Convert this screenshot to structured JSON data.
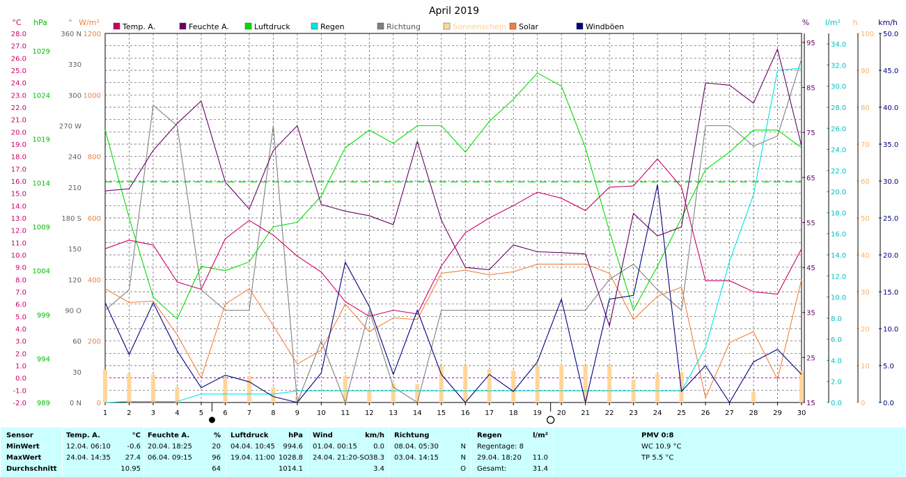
{
  "title": "April 2019",
  "axis_units": {
    "temp": "°C",
    "pressure": "hPa",
    "direction": "°",
    "solar": "W/m²",
    "humidity": "%",
    "rain": "l/m²",
    "sunshine": "h",
    "wind": "km/h"
  },
  "colors": {
    "temp": "#cc0066",
    "humidity": "#660066",
    "pressure": "#00dd00",
    "rain": "#00e5e5",
    "direction": "#808080",
    "sunshine": "#ffd699",
    "solar": "#f08040",
    "gust": "#000080",
    "grid": "#555555",
    "sunshine_label": "#ffcc99"
  },
  "legend": [
    {
      "key": "temp",
      "label": "Temp. A."
    },
    {
      "key": "humidity",
      "label": "Feuchte A."
    },
    {
      "key": "pressure",
      "label": "Luftdruck"
    },
    {
      "key": "rain",
      "label": "Regen"
    },
    {
      "key": "direction",
      "label": "Richtung"
    },
    {
      "key": "sunshine",
      "label": "Sonnenschein"
    },
    {
      "key": "solar",
      "label": "Solar"
    },
    {
      "key": "gust",
      "label": "Windböen"
    }
  ],
  "chart_data": {
    "type": "line",
    "title": "April 2019",
    "x": [
      1,
      2,
      3,
      4,
      5,
      6,
      7,
      8,
      9,
      10,
      11,
      12,
      13,
      14,
      15,
      16,
      17,
      18,
      19,
      20,
      21,
      22,
      23,
      24,
      25,
      26,
      27,
      28,
      29,
      30
    ],
    "temp_ticks": [
      "28.0",
      "27.0",
      "26.0",
      "25.0",
      "24.0",
      "23.0",
      "22.0",
      "21.0",
      "20.0",
      "19.0",
      "18.0",
      "17.0",
      "16.0",
      "15.0",
      "14.0",
      "13.0",
      "12.0",
      "11.0",
      "10.0",
      "9.0",
      "8.0",
      "7.0",
      "6.0",
      "5.0",
      "4.0",
      "3.0",
      "2.0",
      "1.0",
      "0.0",
      "-1.0",
      "-2.0"
    ],
    "pressure_ticks": [
      "1029",
      "1024",
      "1019",
      "1014",
      "1009",
      "1004",
      "999",
      "994",
      "989"
    ],
    "direction_ticks": [
      "360 N",
      "330",
      "300",
      "270 W",
      "240",
      "210",
      "180 S",
      "150",
      "120",
      "90 O",
      "60",
      "30",
      "0 N"
    ],
    "solar_ticks": [
      "1200",
      "1000",
      "800",
      "600",
      "400",
      "200",
      "0"
    ],
    "humidity_ticks": [
      "95",
      "85",
      "75",
      "65",
      "55",
      "45",
      "35",
      "25",
      "15"
    ],
    "rain_ticks": [
      "34.0",
      "32.0",
      "30.0",
      "28.0",
      "26.0",
      "24.0",
      "22.0",
      "20.0",
      "18.0",
      "16.0",
      "14.0",
      "12.0",
      "10.0",
      "8.0",
      "6.0",
      "4.0",
      "2.0",
      "0.0"
    ],
    "sunshine_ticks": [
      "100",
      "90",
      "80",
      "70",
      "60",
      "50",
      "40",
      "30",
      "20",
      "10",
      "0"
    ],
    "wind_ticks": [
      "50.0",
      "45.0",
      "40.0",
      "35.0",
      "30.0",
      "25.0",
      "20.0",
      "15.0",
      "10.0",
      "5.0",
      "0.0"
    ],
    "ranges": {
      "temp": [
        -2,
        28
      ],
      "pressure": [
        989,
        1031
      ],
      "direction": [
        0,
        360
      ],
      "solar": [
        0,
        1200
      ],
      "humidity": [
        15,
        97
      ],
      "rain": [
        0,
        35
      ],
      "sunshine": [
        0,
        100
      ],
      "wind": [
        0,
        50
      ]
    },
    "series": [
      {
        "key": "temp",
        "values": [
          10.5,
          11.2,
          10.8,
          7.8,
          7.2,
          11.3,
          12.8,
          11.6,
          9.9,
          8.6,
          6.2,
          5.0,
          5.5,
          5.2,
          9.1,
          11.8,
          13.0,
          14.0,
          15.1,
          14.6,
          13.6,
          15.5,
          15.6,
          17.8,
          15.5,
          7.9,
          7.9,
          7.0,
          6.8,
          10.5
        ]
      },
      {
        "key": "humidity",
        "values": [
          62.0,
          62.5,
          71.0,
          77.0,
          82.0,
          64.0,
          58.0,
          71.0,
          76.5,
          59.0,
          57.5,
          56.5,
          54.5,
          73.0,
          55.5,
          45.0,
          44.5,
          50.0,
          48.5,
          48.3,
          48.0,
          32.0,
          57.0,
          52.0,
          54.0,
          86.0,
          85.5,
          81.5,
          93.5,
          72.0
        ]
      },
      {
        "key": "pressure",
        "values": [
          1020.0,
          1010.0,
          1001.0,
          998.5,
          1004.5,
          1004.0,
          1005.0,
          1009.0,
          1009.5,
          1012.5,
          1018.0,
          1020.0,
          1018.5,
          1020.5,
          1020.5,
          1017.5,
          1021.0,
          1023.5,
          1026.5,
          1025.0,
          1018.0,
          1008.5,
          999.5,
          1004.5,
          1010.0,
          1015.5,
          1017.5,
          1020.0,
          1020.0,
          1018.0
        ]
      },
      {
        "key": "rain",
        "values": [
          0.0,
          0.1,
          0.1,
          0.1,
          0.8,
          0.8,
          0.8,
          0.8,
          1.1,
          1.1,
          1.1,
          1.1,
          1.1,
          1.1,
          1.1,
          1.1,
          1.1,
          1.1,
          1.1,
          1.1,
          1.1,
          1.1,
          1.1,
          1.1,
          1.1,
          5.2,
          13.4,
          19.7,
          31.5,
          31.7
        ]
      },
      {
        "key": "direction",
        "values": [
          90,
          110,
          290,
          270,
          110,
          90,
          90,
          270,
          0,
          60,
          0,
          90,
          15,
          0,
          90,
          90,
          90,
          90,
          90,
          90,
          90,
          120,
          135,
          110,
          90,
          270,
          270,
          250,
          260,
          335
        ]
      },
      {
        "key": "solar",
        "values": [
          370,
          325,
          330,
          220,
          80,
          320,
          370,
          250,
          125,
          170,
          320,
          230,
          275,
          270,
          420,
          430,
          415,
          425,
          450,
          450,
          450,
          420,
          270,
          345,
          375,
          15,
          195,
          230,
          75,
          400
        ]
      },
      {
        "key": "gust",
        "values": [
          13.5,
          6.5,
          13.5,
          7.0,
          2.0,
          3.7,
          2.8,
          0.8,
          0.0,
          4.0,
          19.0,
          13.0,
          3.8,
          12.5,
          3.8,
          0.0,
          3.8,
          1.5,
          5.5,
          14.0,
          0.0,
          14.0,
          14.5,
          29.5,
          1.5,
          5.0,
          0.0,
          5.5,
          7.2,
          3.8
        ]
      }
    ],
    "sunshine_hours": [
      8.9,
      7.8,
      7.6,
      4.2,
      0.0,
      6.5,
      7.2,
      4.1,
      1.6,
      0.0,
      7.4,
      3.5,
      5.2,
      5.0,
      9.9,
      10.0,
      9.0,
      8.7,
      10.0,
      10.2,
      10.0,
      9.9,
      6.2,
      7.7,
      8.2,
      0.0,
      0.0,
      3.0,
      0.0,
      8.6
    ],
    "pressure_mean_line": 1014.1,
    "zero_temp_line": 0.0,
    "moon_markers": [
      {
        "day": 5.45,
        "phase": "new"
      },
      {
        "day": 19.55,
        "phase": "full"
      }
    ]
  },
  "stats": {
    "sensor": {
      "title": "Sensor",
      "rows": [
        "MinWert",
        "MaxWert",
        "Durchschnitt"
      ]
    },
    "temp": {
      "title": "Temp. A.",
      "unit": "°C",
      "min": {
        "time": "12.04.  06:10",
        "value": "-0.6"
      },
      "max": {
        "time": "24.04.  14:35",
        "value": "27.4"
      },
      "avg": "10.95"
    },
    "humidity": {
      "title": "Feuchte A.",
      "unit": "%",
      "min": {
        "time": "20.04.  18:25",
        "value": "20"
      },
      "max": {
        "time": "06.04.  09:15",
        "value": "96"
      },
      "avg": "64"
    },
    "pressure": {
      "title": "Luftdruck",
      "unit": "hPa",
      "min": {
        "time": "04.04.  10:45",
        "value": "994.6"
      },
      "max": {
        "time": "19.04.  11:00",
        "value": "1028.8"
      },
      "avg": "1014.1"
    },
    "wind": {
      "title": "Wind",
      "unit": "km/h",
      "min": {
        "time": "01.04.  00:15",
        "value": "0.0"
      },
      "max": {
        "time": "24.04.  21:20-SO",
        "value": "38.3"
      },
      "avg": "3.4"
    },
    "direction": {
      "title": "Richtung",
      "min": {
        "time": "08.04.  05:30",
        "value": "N"
      },
      "max": {
        "time": "03.04.  14:15",
        "value": "N"
      },
      "avg": "O"
    },
    "rain": {
      "title": "Regen",
      "unit": "l/m²",
      "row1": "Regentage: 8",
      "row2_label": "29.04.  18:20",
      "row2_value": "11.0",
      "row3_label": "Gesamt:",
      "row3_value": "31.4"
    },
    "extra": {
      "title": "PMV 0:8",
      "wc": "WC 10.9 °C",
      "tp": "TP 5.5 °C"
    }
  }
}
